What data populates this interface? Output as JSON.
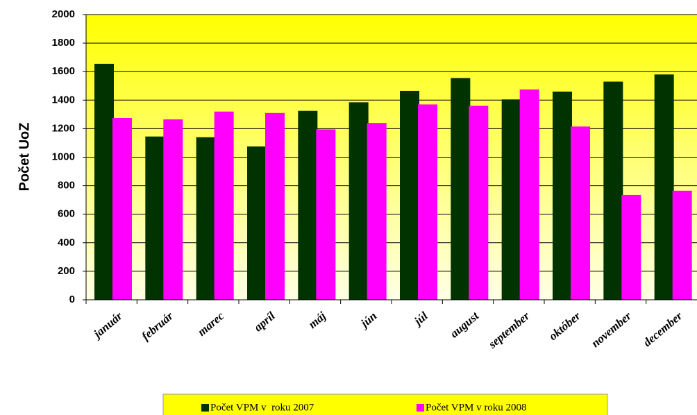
{
  "chart_data": {
    "type": "bar",
    "y_label": "Počet UoZ",
    "categories": [
      "január",
      "február",
      "marec",
      "apríl",
      "máj",
      "jún",
      "júl",
      "august",
      "september",
      "október",
      "november",
      "december"
    ],
    "series": [
      {
        "name": "Počet VPM v  roku 2007",
        "color": "#003300",
        "values": [
          1655,
          1145,
          1140,
          1075,
          1325,
          1385,
          1465,
          1555,
          1405,
          1460,
          1530,
          1580
        ]
      },
      {
        "name": "Počet VPM v roku 2008",
        "color": "#ff00ff",
        "values": [
          1275,
          1265,
          1320,
          1310,
          1195,
          1240,
          1370,
          1360,
          1475,
          1215,
          735,
          765
        ]
      }
    ],
    "ylim": [
      0,
      2000
    ],
    "yticks": [
      0,
      200,
      400,
      600,
      800,
      1000,
      1200,
      1400,
      1600,
      1800,
      2000
    ],
    "grid": true
  }
}
